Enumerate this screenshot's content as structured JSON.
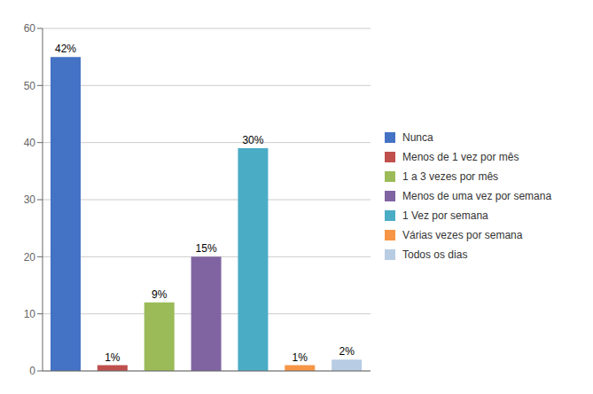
{
  "chart_data": {
    "type": "bar",
    "categories": [
      "Nunca",
      "Menos de 1 vez por mês",
      "1 a 3 vezes por mês",
      "Menos de uma vez por semana",
      "1 Vez por semana",
      "Várias vezes por semana",
      "Todos os dias"
    ],
    "values": [
      55,
      1,
      12,
      20,
      39,
      1,
      2
    ],
    "value_labels": [
      "42%",
      "1%",
      "9%",
      "15%",
      "30%",
      "1%",
      "2%"
    ],
    "data_labels": true,
    "colors": [
      "#4472C4",
      "#C0504D",
      "#9BBB59",
      "#8064A2",
      "#4BACC6",
      "#F79646",
      "#B8CCE4"
    ],
    "ylim": [
      0,
      60
    ],
    "yticks": [
      0,
      10,
      20,
      30,
      40,
      50,
      60
    ],
    "grid": true,
    "legend": "right",
    "tick_labels": "y"
  }
}
